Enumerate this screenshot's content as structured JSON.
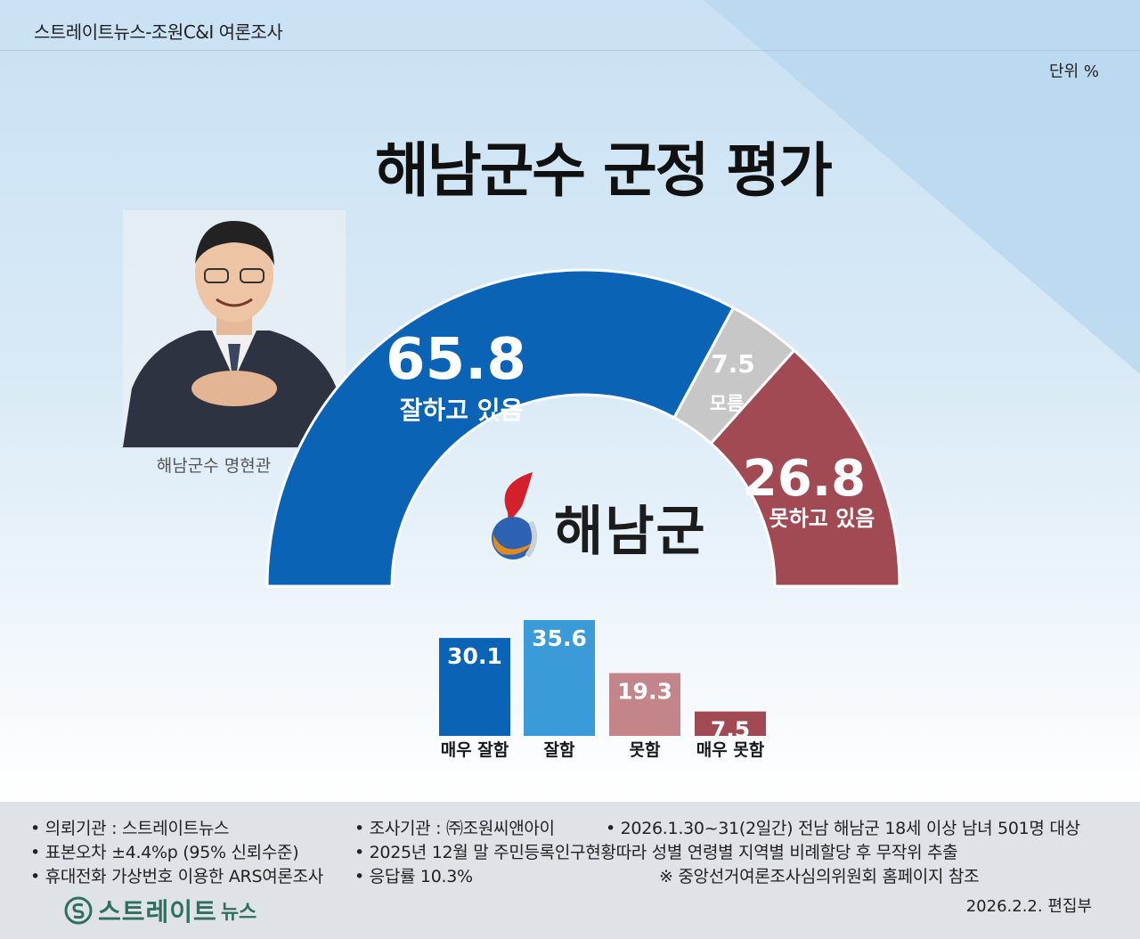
{
  "header": {
    "source": "스트레이트뉴스-조원C&I 여론조사",
    "unit": "단위 %"
  },
  "title": "해남군수 군정 평가",
  "photo_caption": "해남군수 명현관",
  "logo_text": "해남군",
  "colors": {
    "positive": "#0a63b5",
    "unknown": "#c7c7c7",
    "negative": "#a24a53",
    "very_good": "#0a63b5",
    "good": "#3a9bd8",
    "bad": "#c3848a",
    "very_bad": "#a24a53"
  },
  "chart_data": [
    {
      "type": "pie",
      "categories": [
        "잘하고 있음",
        "모름",
        "못하고 있음"
      ],
      "values": [
        65.8,
        7.5,
        26.8
      ]
    },
    {
      "type": "bar",
      "categories": [
        "매우 잘함",
        "잘함",
        "못함",
        "매우 못함"
      ],
      "values": [
        30.1,
        35.6,
        19.3,
        7.5
      ]
    }
  ],
  "footer": {
    "notes": [
      "• 의뢰기관 : 스트레이트뉴스",
      "• 조사기관 : ㈜조원씨앤아이",
      "• 2026.1.30~31(2일간) 전남 해남군 18세 이상 남녀 501명 대상",
      "• 표본오차 ±4.4%p (95% 신뢰수준)",
      "• 2025년 12월 말 주민등록인구현황따라 성별 연령별 지역별 비례할당 후 무작위 추출",
      "• 휴대전화 가상번호 이용한 ARS여론조사",
      "• 응답률 10.3%",
      "※ 중앙선거여론조사심의위원회 홈페이지 참조"
    ],
    "brand_main": "스트레이트",
    "brand_sub": "뉴스",
    "date_editor": "2026.2.2. 편집부"
  }
}
